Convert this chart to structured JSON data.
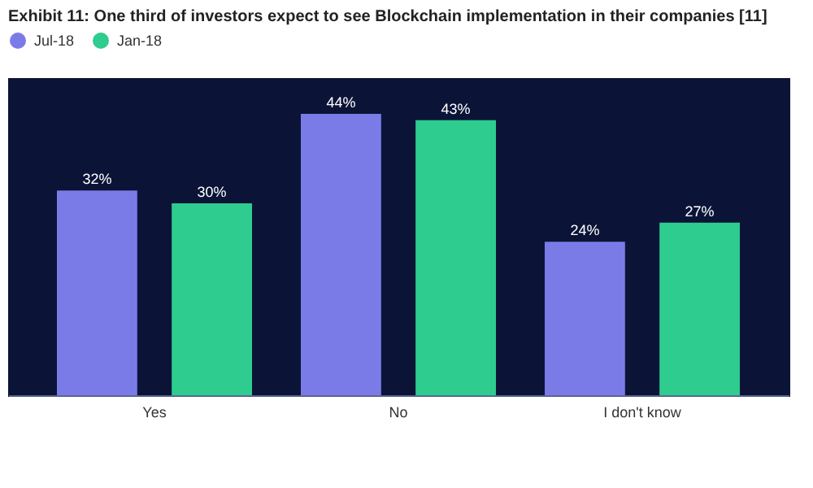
{
  "chart_data": {
    "type": "bar",
    "title": "Exhibit 11: One third of investors expect to see Blockchain implementation in their companies [11]",
    "categories": [
      "Yes",
      "No",
      "I don't know"
    ],
    "series": [
      {
        "name": "Jul-18",
        "color": "#7b7be8",
        "values": [
          32,
          44,
          24
        ],
        "value_labels": [
          "32%",
          "44%",
          "24%"
        ]
      },
      {
        "name": "Jan-18",
        "color": "#2ecc8f",
        "values": [
          30,
          43,
          27
        ],
        "value_labels": [
          "30%",
          "43%",
          "27%"
        ]
      }
    ],
    "tick_labels": "x",
    "grid": false,
    "legend": "top"
  }
}
